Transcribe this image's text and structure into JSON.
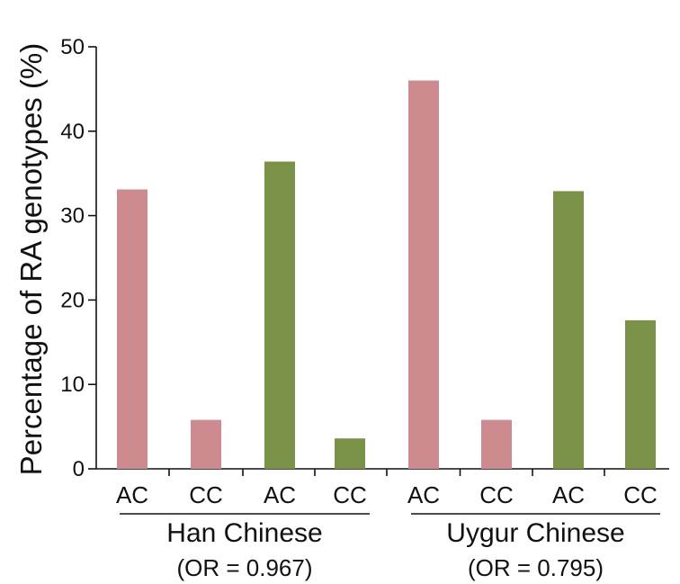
{
  "chart_data": {
    "type": "bar",
    "ylabel": "Percentage of RA genotypes (%)",
    "ylim": [
      0,
      50
    ],
    "yticks": [
      0,
      10,
      20,
      30,
      40,
      50
    ],
    "grid": false,
    "colors": {
      "pink": "#CD8B8F",
      "green": "#7A9148"
    },
    "groups": [
      {
        "name": "Han Chinese",
        "or_label": "(OR = 0.967)",
        "bars": [
          {
            "category": "AC",
            "value": 33.1,
            "color": "pink"
          },
          {
            "category": "CC",
            "value": 5.8,
            "color": "pink"
          },
          {
            "category": "AC",
            "value": 36.4,
            "color": "green"
          },
          {
            "category": "CC",
            "value": 3.6,
            "color": "green"
          }
        ]
      },
      {
        "name": "Uygur Chinese",
        "or_label": "(OR = 0.795)",
        "bars": [
          {
            "category": "AC",
            "value": 46.0,
            "color": "pink"
          },
          {
            "category": "CC",
            "value": 5.8,
            "color": "pink"
          },
          {
            "category": "AC",
            "value": 32.9,
            "color": "green"
          },
          {
            "category": "CC",
            "value": 17.6,
            "color": "green"
          }
        ]
      }
    ]
  }
}
